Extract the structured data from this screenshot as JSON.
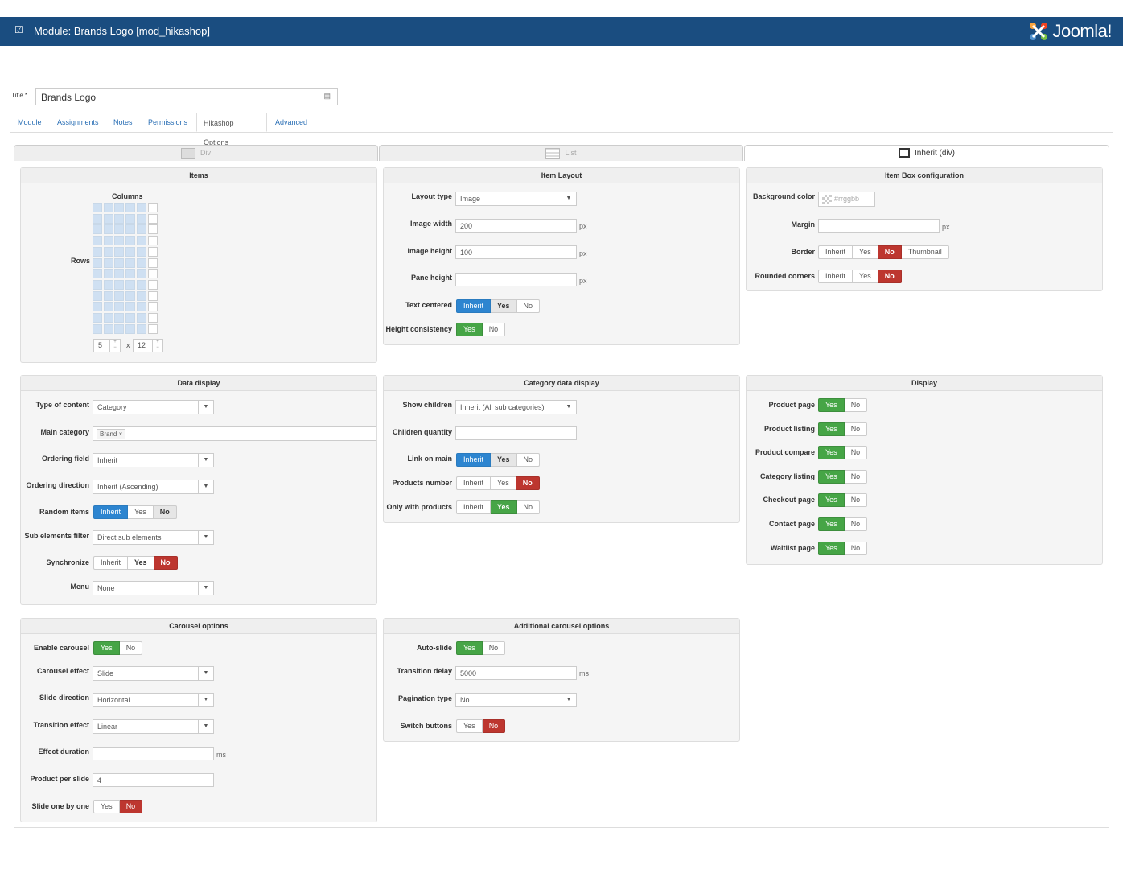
{
  "header": {
    "title": "Module: Brands Logo [mod_hikashop]",
    "brand": "Joomla!"
  },
  "title_field": {
    "label": "Title *",
    "value": "Brands Logo"
  },
  "tabs": [
    "Module",
    "Assignments",
    "Notes",
    "Permissions",
    "Hikashop Options",
    "Advanced"
  ],
  "layout_tabs": [
    "Div",
    "List",
    "Inherit (div)"
  ],
  "items": {
    "header": "Items",
    "columns_label": "Columns",
    "rows_label": "Rows",
    "columns": "5",
    "rows": "12",
    "times": "x"
  },
  "item_layout": {
    "header": "Item Layout",
    "layout_type": {
      "label": "Layout type",
      "value": "Image"
    },
    "image_width": {
      "label": "Image width",
      "value": "200",
      "unit": "px"
    },
    "image_height": {
      "label": "Image height",
      "value": "100",
      "unit": "px"
    },
    "pane_height": {
      "label": "Pane height",
      "value": "",
      "unit": "px"
    },
    "text_centered": {
      "label": "Text centered",
      "options": [
        "Inherit",
        "Yes",
        "No"
      ]
    },
    "height_consistency": {
      "label": "Height consistency",
      "options": [
        "Yes",
        "No"
      ]
    }
  },
  "item_box": {
    "header": "Item Box configuration",
    "background_color": {
      "label": "Background color",
      "placeholder": "#rrggbb"
    },
    "margin": {
      "label": "Margin",
      "unit": "px"
    },
    "border": {
      "label": "Border",
      "options": [
        "Inherit",
        "Yes",
        "No",
        "Thumbnail"
      ]
    },
    "rounded_corners": {
      "label": "Rounded corners",
      "options": [
        "Inherit",
        "Yes",
        "No"
      ]
    }
  },
  "data_display": {
    "header": "Data display",
    "type_of_content": {
      "label": "Type of content",
      "value": "Category"
    },
    "main_category": {
      "label": "Main category",
      "tag": "Brand"
    },
    "ordering_field": {
      "label": "Ordering field",
      "value": "Inherit"
    },
    "ordering_direction": {
      "label": "Ordering direction",
      "value": "Inherit (Ascending)"
    },
    "random_items": {
      "label": "Random items",
      "options": [
        "Inherit",
        "Yes",
        "No"
      ]
    },
    "sub_elements_filter": {
      "label": "Sub elements filter",
      "value": "Direct sub elements"
    },
    "synchronize": {
      "label": "Synchronize",
      "options": [
        "Inherit",
        "Yes",
        "No"
      ]
    },
    "menu": {
      "label": "Menu",
      "value": "None"
    }
  },
  "category_data": {
    "header": "Category data display",
    "show_children": {
      "label": "Show children",
      "value": "Inherit (All sub categories)"
    },
    "children_quantity": {
      "label": "Children quantity",
      "value": ""
    },
    "link_on_main": {
      "label": "Link on main",
      "options": [
        "Inherit",
        "Yes",
        "No"
      ]
    },
    "products_number": {
      "label": "Products number",
      "options": [
        "Inherit",
        "Yes",
        "No"
      ]
    },
    "only_with_products": {
      "label": "Only with products",
      "options": [
        "Inherit",
        "Yes",
        "No"
      ]
    }
  },
  "display": {
    "header": "Display",
    "rows": [
      {
        "label": "Product page",
        "yes": "Yes",
        "no": "No"
      },
      {
        "label": "Product listing",
        "yes": "Yes",
        "no": "No"
      },
      {
        "label": "Product compare",
        "yes": "Yes",
        "no": "No"
      },
      {
        "label": "Category listing",
        "yes": "Yes",
        "no": "No"
      },
      {
        "label": "Checkout page",
        "yes": "Yes",
        "no": "No"
      },
      {
        "label": "Contact page",
        "yes": "Yes",
        "no": "No"
      },
      {
        "label": "Waitlist page",
        "yes": "Yes",
        "no": "No"
      }
    ]
  },
  "carousel": {
    "header": "Carousel options",
    "enable_carousel": {
      "label": "Enable carousel",
      "options": [
        "Yes",
        "No"
      ]
    },
    "carousel_effect": {
      "label": "Carousel effect",
      "value": "Slide"
    },
    "slide_direction": {
      "label": "Slide direction",
      "value": "Horizontal"
    },
    "transition_effect": {
      "label": "Transition effect",
      "value": "Linear"
    },
    "effect_duration": {
      "label": "Effect duration",
      "value": "",
      "unit": "ms"
    },
    "product_per_slide": {
      "label": "Product per slide",
      "value": "4"
    },
    "slide_one_by_one": {
      "label": "Slide one by one",
      "options": [
        "Yes",
        "No"
      ]
    }
  },
  "additional_carousel": {
    "header": "Additional carousel options",
    "auto_slide": {
      "label": "Auto-slide",
      "options": [
        "Yes",
        "No"
      ]
    },
    "transition_delay": {
      "label": "Transition delay",
      "value": "5000",
      "unit": "ms"
    },
    "pagination_type": {
      "label": "Pagination type",
      "value": "No"
    },
    "switch_buttons": {
      "label": "Switch buttons",
      "options": [
        "Yes",
        "No"
      ]
    }
  }
}
